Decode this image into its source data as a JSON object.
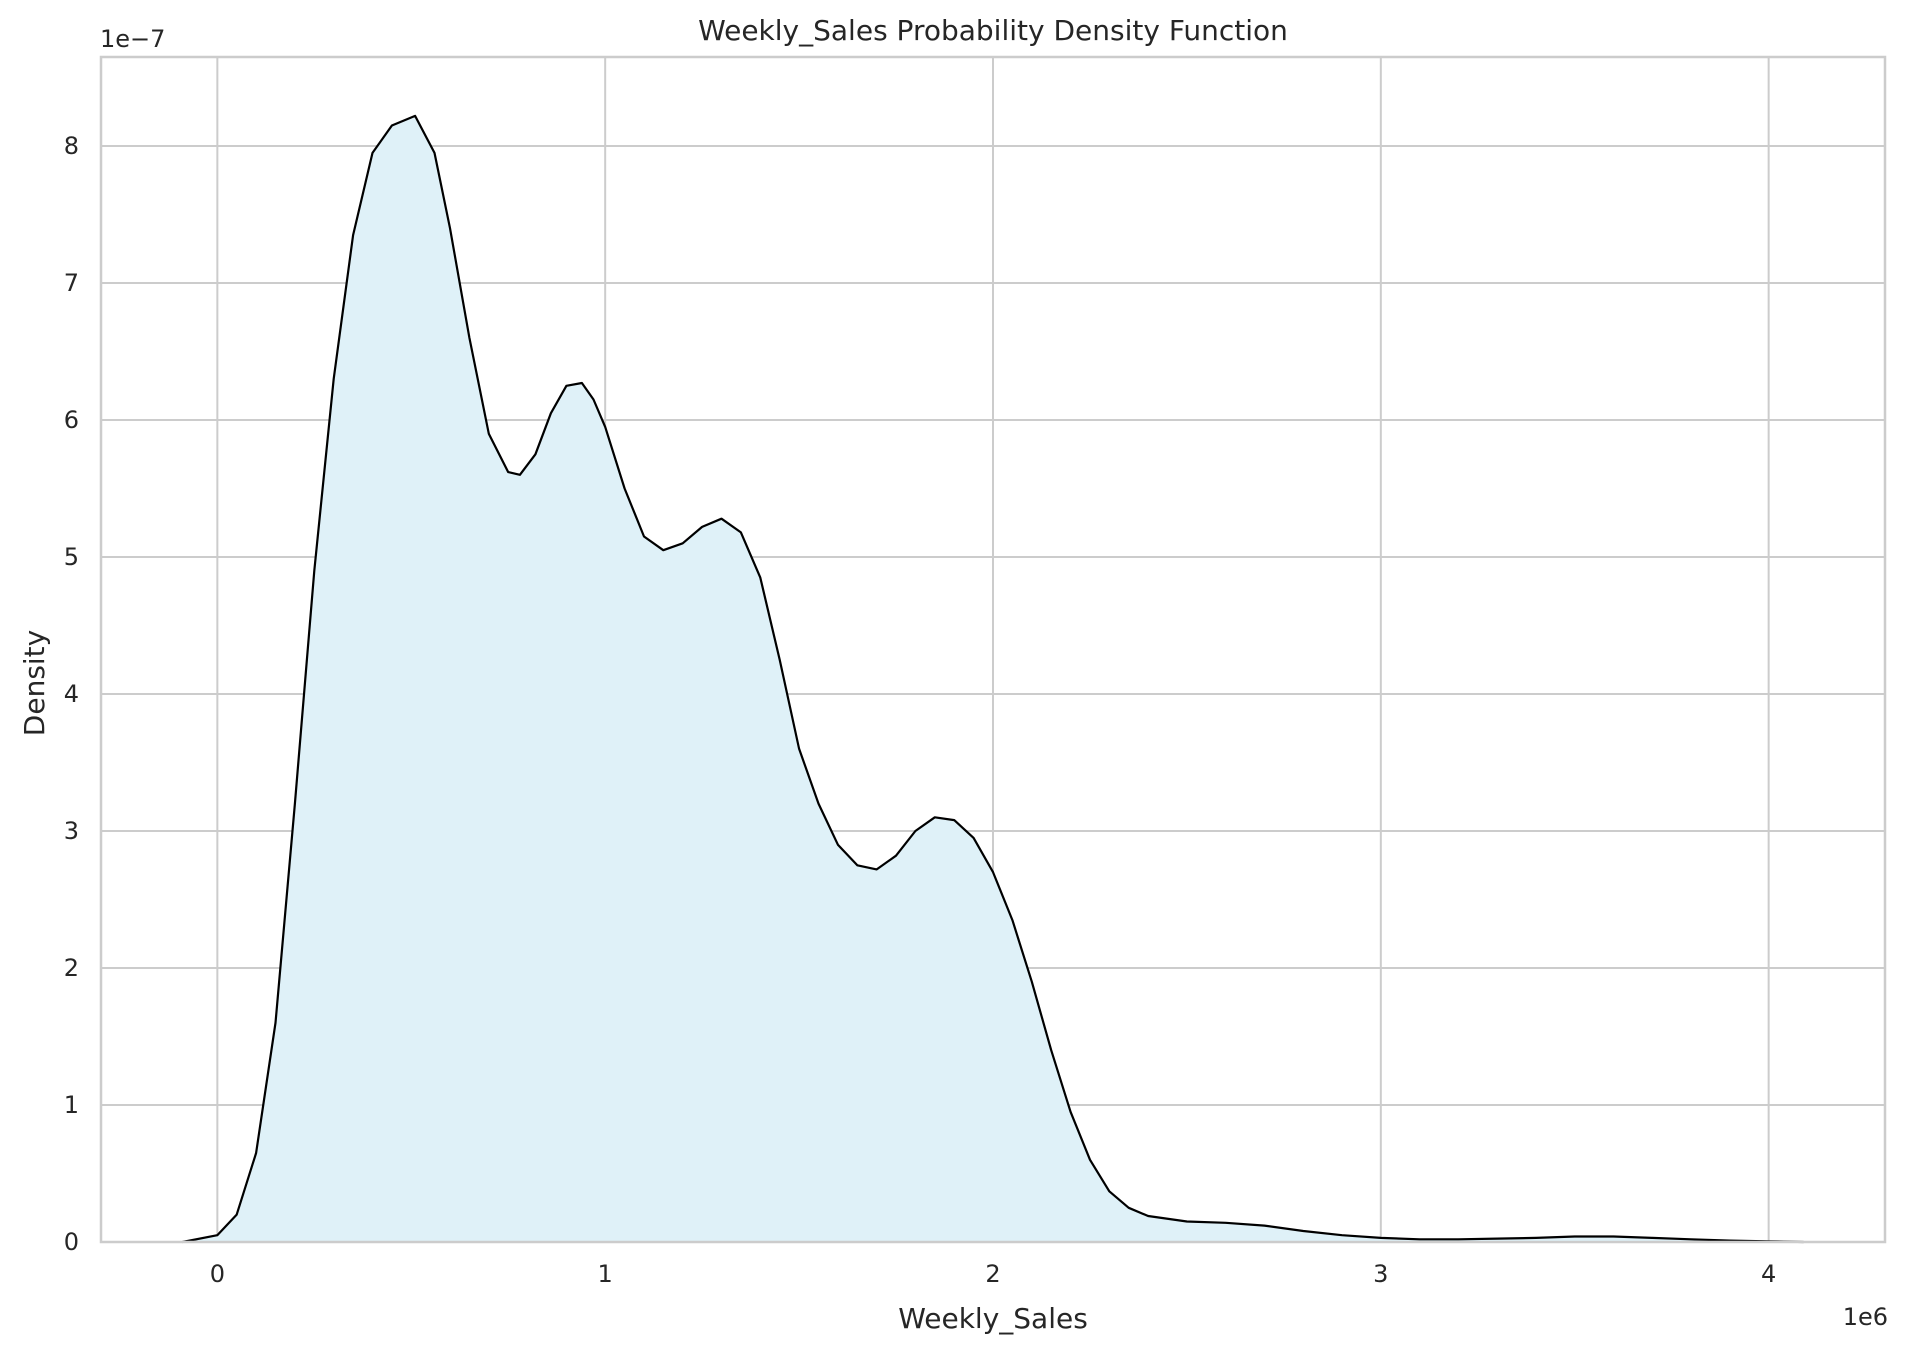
{
  "chart_data": {
    "type": "area",
    "title": "Weekly_Sales Probability Density Function",
    "xlabel": "Weekly_Sales",
    "ylabel": "Density",
    "x_offset_label": "1e6",
    "y_offset_label": "1e−7",
    "x_scale": 1000000,
    "y_scale": 1e-07,
    "xlim": [
      -0.3,
      4.3
    ],
    "ylim": [
      0,
      8.65
    ],
    "x_ticks": [
      0,
      1,
      2,
      3,
      4
    ],
    "x_tick_labels": [
      "0",
      "1",
      "2",
      "3",
      "4"
    ],
    "y_ticks": [
      0,
      1,
      2,
      3,
      4,
      5,
      6,
      7,
      8
    ],
    "y_tick_labels": [
      "0",
      "1",
      "2",
      "3",
      "4",
      "5",
      "6",
      "7",
      "8"
    ],
    "grid": true,
    "fill_color": "#dff1f8",
    "line_color": "#000000",
    "grid_color": "#cccccc",
    "series": [
      {
        "x": [
          -0.09,
          0.0,
          0.05,
          0.1,
          0.15,
          0.2,
          0.25,
          0.3,
          0.35,
          0.4,
          0.45,
          0.51,
          0.56,
          0.6,
          0.65,
          0.7,
          0.75,
          0.78,
          0.82,
          0.86,
          0.9,
          0.94,
          0.97,
          1.0,
          1.05,
          1.1,
          1.15,
          1.2,
          1.25,
          1.3,
          1.35,
          1.4,
          1.45,
          1.5,
          1.55,
          1.6,
          1.65,
          1.7,
          1.75,
          1.8,
          1.85,
          1.9,
          1.95,
          2.0,
          2.05,
          2.1,
          2.15,
          2.2,
          2.25,
          2.3,
          2.35,
          2.4,
          2.5,
          2.6,
          2.7,
          2.8,
          2.9,
          3.0,
          3.1,
          3.2,
          3.3,
          3.4,
          3.5,
          3.6,
          3.7,
          3.8,
          3.9,
          4.0,
          4.09
        ],
        "y": [
          0.0,
          0.05,
          0.2,
          0.65,
          1.6,
          3.2,
          4.9,
          6.3,
          7.35,
          7.95,
          8.15,
          8.22,
          7.95,
          7.4,
          6.6,
          5.9,
          5.62,
          5.6,
          5.75,
          6.05,
          6.25,
          6.27,
          6.15,
          5.95,
          5.5,
          5.15,
          5.05,
          5.1,
          5.22,
          5.28,
          5.18,
          4.85,
          4.25,
          3.6,
          3.2,
          2.9,
          2.75,
          2.72,
          2.82,
          3.0,
          3.1,
          3.08,
          2.95,
          2.7,
          2.35,
          1.9,
          1.4,
          0.95,
          0.6,
          0.37,
          0.25,
          0.19,
          0.15,
          0.14,
          0.12,
          0.08,
          0.05,
          0.03,
          0.02,
          0.02,
          0.025,
          0.03,
          0.04,
          0.04,
          0.03,
          0.02,
          0.01,
          0.005,
          0.0
        ]
      }
    ]
  }
}
